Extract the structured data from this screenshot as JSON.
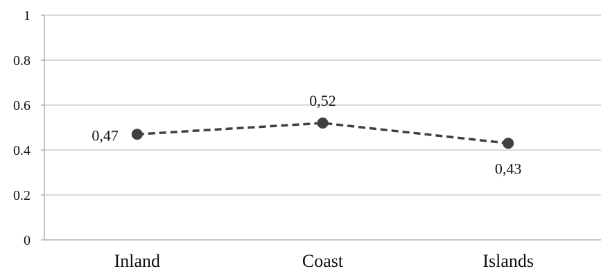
{
  "chart_data": {
    "type": "line",
    "categories": [
      "Inland",
      "Coast",
      "Islands"
    ],
    "series": [
      {
        "values": [
          0.47,
          0.52,
          0.43
        ],
        "data_labels": [
          "0,47",
          "0,52",
          "0,43"
        ],
        "line_style": "dashed",
        "marker": "circle"
      }
    ],
    "title": "",
    "xlabel": "",
    "ylabel": "",
    "ylim": [
      0,
      1
    ],
    "yticks": [
      0,
      0.2,
      0.4,
      0.6,
      0.8,
      1
    ],
    "ytick_labels": [
      "0",
      "0.2",
      "0.4",
      "0.6",
      "0.8",
      "1"
    ],
    "grid": "horizontal",
    "legend": "none",
    "colors": {
      "series": "#404040",
      "grid": "#b4b4b4",
      "axis": "#8c8c8c",
      "text": "#111111"
    }
  }
}
